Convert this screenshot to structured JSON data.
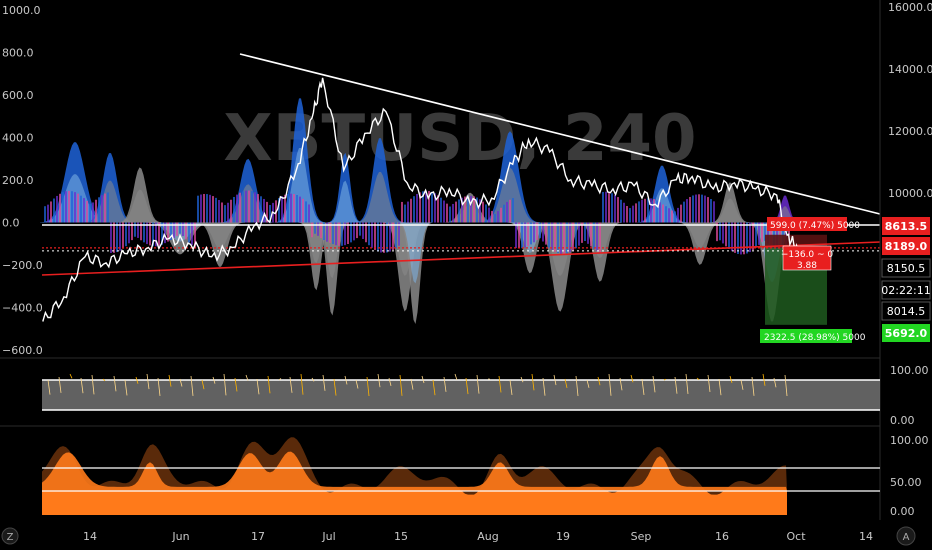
{
  "watermark": "XBTUSD, 240",
  "colors": {
    "background": "#000000",
    "price_line": "#ffffff",
    "trend_red": "#e81f1f",
    "trend_white": "#ffffff",
    "osc_blue": "#1e63d8",
    "osc_gray": "#8a8a8a",
    "osc_light_blue": "#7fb4e6",
    "osc_pink": "#e04a9b",
    "osc_purple": "#6a2ccf",
    "middle_fill": "#6b6b6b",
    "bottom_orange": "#ff7a1a",
    "bottom_dark": "#5a2a0a",
    "green_zone": "#1f5a1f",
    "red_zone": "#5a1212"
  },
  "chart_data": [
    {
      "type": "line",
      "panel": "main",
      "title": "XBTUSD, 240",
      "left_ticks": [
        "1000.0",
        "800.0",
        "600.0",
        "400.0",
        "200.0",
        "0.0",
        "−200.0",
        "−400.0",
        "−600.0"
      ],
      "left_ylim": [
        -600,
        1000
      ],
      "right_ticks": [
        "16000.0",
        "14000.0",
        "12000.0",
        "10000.0"
      ],
      "right_ylim": [
        5692,
        16000
      ],
      "x_ticks": [
        "14",
        "Jun",
        "17",
        "Jul",
        "15",
        "Aug",
        "19",
        "Sep",
        "16",
        "Oct",
        "14"
      ],
      "series": [
        {
          "x": [
            "May 06",
            "May 10",
            "May 14",
            "May 18",
            "May 22",
            "May 26",
            "May 30",
            "Jun 03",
            "Jun 07",
            "Jun 11",
            "Jun 15",
            "Jun 19",
            "Jun 23",
            "Jun 26",
            "Jun 28",
            "Jul 02",
            "Jul 06",
            "Jul 10",
            "Jul 14",
            "Jul 18",
            "Jul 22",
            "Jul 26",
            "Jul 30",
            "Aug 03",
            "Aug 06",
            "Aug 10",
            "Aug 14",
            "Aug 18",
            "Aug 22",
            "Aug 26",
            "Aug 30",
            "Sep 03",
            "Sep 06",
            "Sep 10",
            "Sep 14",
            "Sep 18",
            "Sep 22",
            "Sep 24",
            "Sep 26"
          ],
          "y": [
            5800,
            6600,
            7900,
            7700,
            8000,
            8200,
            8500,
            8300,
            7900,
            8200,
            8900,
            9300,
            10700,
            12400,
            13700,
            10700,
            11900,
            12600,
            10300,
            9800,
            10100,
            9600,
            9800,
            10900,
            11700,
            11300,
            10400,
            10200,
            10100,
            10200,
            9600,
            10400,
            10500,
            10100,
            10300,
            10100,
            9900,
            8600,
            8150
          ]
        }
      ],
      "price_labels": [
        {
          "text": "8613.5",
          "color": "#e81f1f"
        },
        {
          "text": "8189.0",
          "color": "#e81f1f"
        },
        {
          "text": "8150.5",
          "color": "#ffffff"
        },
        {
          "text": "02:22:11",
          "color": "#ffffff"
        },
        {
          "text": "8014.5",
          "color": "#ffffff"
        },
        {
          "text": "5692.0",
          "color": "#22d622"
        }
      ],
      "annotations": [
        "599.0 (7.47%) 5000",
        "−136.0 ~ 0",
        "3.88",
        "2322.5 (28.98%) 5000"
      ]
    },
    {
      "type": "area",
      "panel": "middle",
      "right_ticks": [
        "100.00",
        "0.00"
      ],
      "ylim": [
        0,
        100
      ]
    },
    {
      "type": "area",
      "panel": "bottom",
      "right_ticks": [
        "100.00",
        "50.00",
        "0.00"
      ],
      "ylim": [
        0,
        100
      ]
    }
  ],
  "ui": {
    "left_corner_label": "Z",
    "right_corner_label": "A"
  }
}
